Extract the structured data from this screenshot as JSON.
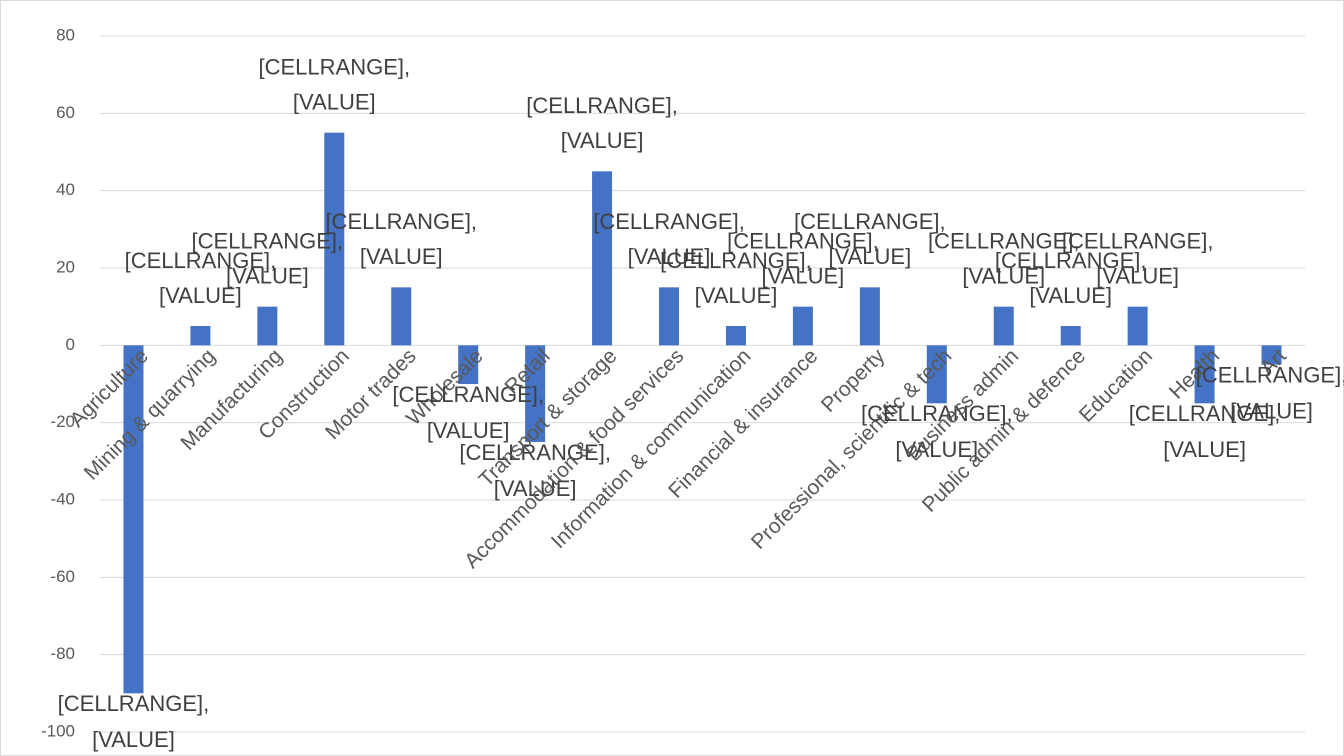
{
  "chart_data": {
    "type": "bar",
    "categories": [
      "Agriculture",
      "Mining & quarrying",
      "Manufacturing",
      "Construction",
      "Motor trades",
      "Wholesale",
      "Retail",
      "Transport & storage",
      "Accommodation & food services",
      "Information & communication",
      "Financial & insurance",
      "Property",
      "Professional, scientific & tech",
      "Business admin",
      "Public admin & defence",
      "Education",
      "Health",
      "Art"
    ],
    "values": [
      -90,
      5,
      10,
      55,
      15,
      -10,
      -25,
      45,
      15,
      5,
      10,
      15,
      -15,
      10,
      5,
      10,
      -15,
      -5
    ],
    "data_labels": [
      [
        "[CELLRANGE],",
        "[VALUE]"
      ],
      [
        "[CELLRANGE],",
        "[VALUE]"
      ],
      [
        "[CELLRANGE],",
        "[VALUE]"
      ],
      [
        "[CELLRANGE],",
        "[VALUE]"
      ],
      [
        "[CELLRANGE],",
        "[VALUE]"
      ],
      [
        "[CELLRANGE],",
        "[VALUE]"
      ],
      [
        "[CELLRANGE],",
        "[VALUE]"
      ],
      [
        "[CELLRANGE],",
        "[VALUE]"
      ],
      [
        "[CELLRANGE],",
        "[VALUE]"
      ],
      [
        "[CELLRANGE],",
        "[VALUE]"
      ],
      [
        "[CELLRANGE],",
        "[VALUE]"
      ],
      [
        "[CELLRANGE],",
        "[VALUE]"
      ],
      [
        "[CELLRANGE],",
        "[VALUE]"
      ],
      [
        "[CELLRANGE],",
        "[VALUE]"
      ],
      [
        "[CELLRANGE],",
        "[VALUE]"
      ],
      [
        "[CELLRANGE],",
        "[VALUE]"
      ],
      [
        "[CELLRANGE],",
        "[VALUE]"
      ],
      [
        "[CELLRANGE],",
        "[VALUE]"
      ]
    ],
    "color": "#4472c4",
    "ylim": [
      -100,
      80
    ],
    "yticks": [
      -100,
      -80,
      -60,
      -40,
      -20,
      0,
      20,
      40,
      60,
      80
    ],
    "grid": true
  }
}
